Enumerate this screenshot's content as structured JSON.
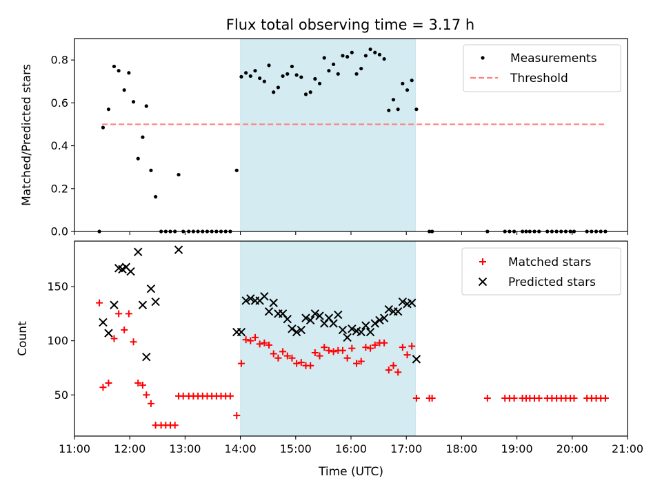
{
  "figure": {
    "title": "Flux total observing time = 3.17 h"
  },
  "chart_data": [
    {
      "type": "scatter",
      "panel": "top",
      "ylabel": "Matched/Predicted stars",
      "xlim": [
        "11:00",
        "21:00"
      ],
      "ylim": [
        0,
        0.9
      ],
      "y_ticks": [
        "0.0",
        "0.2",
        "0.4",
        "0.6",
        "0.8"
      ],
      "y_tick_values": [
        0,
        0.2,
        0.4,
        0.6,
        0.8
      ],
      "grid": false,
      "legend": {
        "placement": "top-right",
        "entries": [
          "Measurements",
          "Threshold"
        ]
      },
      "shaded_span": {
        "x_start": "14:00",
        "x_end": "17:10",
        "color": "#d3ebf1"
      },
      "threshold": {
        "name": "Threshold",
        "y": 0.5,
        "x_start": "11:30",
        "x_end": "20:35",
        "color": "#ff7f7f",
        "style": "dashed"
      },
      "series": [
        {
          "name": "Measurements",
          "color": "#000000",
          "points": [
            [
              "11:27",
              0.0
            ],
            [
              "11:31",
              0.485
            ],
            [
              "11:37",
              0.57
            ],
            [
              "11:43",
              0.77
            ],
            [
              "11:48",
              0.75
            ],
            [
              "11:54",
              0.66
            ],
            [
              "11:59",
              0.74
            ],
            [
              "12:04",
              0.605
            ],
            [
              "12:09",
              0.34
            ],
            [
              "12:14",
              0.44
            ],
            [
              "12:18",
              0.585
            ],
            [
              "12:23",
              0.285
            ],
            [
              "12:28",
              0.162
            ],
            [
              "12:34",
              0.0
            ],
            [
              "12:39",
              0.0
            ],
            [
              "12:44",
              0.0
            ],
            [
              "12:49",
              0.0
            ],
            [
              "12:53",
              0.265
            ],
            [
              "12:58",
              0.0
            ],
            [
              "13:04",
              0.0
            ],
            [
              "13:09",
              0.0
            ],
            [
              "13:14",
              0.0
            ],
            [
              "13:19",
              0.0
            ],
            [
              "13:24",
              0.0
            ],
            [
              "13:29",
              0.0
            ],
            [
              "13:34",
              0.0
            ],
            [
              "13:39",
              0.0
            ],
            [
              "13:44",
              0.0
            ],
            [
              "13:49",
              0.0
            ],
            [
              "13:56",
              0.285
            ],
            [
              "14:01",
              0.722
            ],
            [
              "14:06",
              0.74
            ],
            [
              "14:11",
              0.725
            ],
            [
              "14:16",
              0.75
            ],
            [
              "14:21",
              0.715
            ],
            [
              "14:26",
              0.7
            ],
            [
              "14:31",
              0.775
            ],
            [
              "14:36",
              0.65
            ],
            [
              "14:41",
              0.672
            ],
            [
              "14:46",
              0.725
            ],
            [
              "14:51",
              0.735
            ],
            [
              "14:56",
              0.77
            ],
            [
              "15:01",
              0.73
            ],
            [
              "15:06",
              0.72
            ],
            [
              "15:11",
              0.64
            ],
            [
              "15:16",
              0.65
            ],
            [
              "15:21",
              0.712
            ],
            [
              "15:26",
              0.69
            ],
            [
              "15:31",
              0.81
            ],
            [
              "15:36",
              0.75
            ],
            [
              "15:41",
              0.78
            ],
            [
              "15:46",
              0.735
            ],
            [
              "15:51",
              0.82
            ],
            [
              "15:56",
              0.815
            ],
            [
              "16:01",
              0.835
            ],
            [
              "16:06",
              0.735
            ],
            [
              "16:11",
              0.76
            ],
            [
              "16:16",
              0.82
            ],
            [
              "16:21",
              0.85
            ],
            [
              "16:26",
              0.835
            ],
            [
              "16:31",
              0.825
            ],
            [
              "16:36",
              0.805
            ],
            [
              "16:41",
              0.565
            ],
            [
              "16:46",
              0.615
            ],
            [
              "16:51",
              0.57
            ],
            [
              "16:56",
              0.69
            ],
            [
              "17:01",
              0.66
            ],
            [
              "17:06",
              0.705
            ],
            [
              "17:11",
              0.57
            ],
            [
              "17:25",
              0.0
            ],
            [
              "17:28",
              0.0
            ],
            [
              "18:28",
              0.0
            ],
            [
              "18:47",
              0.0
            ],
            [
              "18:52",
              0.0
            ],
            [
              "18:57",
              0.0
            ],
            [
              "19:06",
              0.0
            ],
            [
              "19:10",
              0.0
            ],
            [
              "19:14",
              0.0
            ],
            [
              "19:19",
              0.0
            ],
            [
              "19:24",
              0.0
            ],
            [
              "19:33",
              0.0
            ],
            [
              "19:38",
              0.0
            ],
            [
              "19:43",
              0.0
            ],
            [
              "19:48",
              0.0
            ],
            [
              "19:53",
              0.0
            ],
            [
              "19:58",
              0.0
            ],
            [
              "20:02",
              0.0
            ],
            [
              "20:16",
              0.0
            ],
            [
              "20:21",
              0.0
            ],
            [
              "20:26",
              0.0
            ],
            [
              "20:31",
              0.0
            ],
            [
              "20:36",
              0.0
            ]
          ]
        }
      ]
    },
    {
      "type": "scatter",
      "panel": "bottom",
      "xlabel": "Time (UTC)",
      "ylabel": "Count",
      "xlim": [
        "11:00",
        "21:00"
      ],
      "x_ticks": [
        "11:00",
        "12:00",
        "13:00",
        "14:00",
        "15:00",
        "16:00",
        "17:00",
        "18:00",
        "19:00",
        "20:00",
        "21:00"
      ],
      "ylim": [
        12,
        192
      ],
      "y_ticks": [
        "50",
        "100",
        "150"
      ],
      "y_tick_values": [
        50,
        100,
        150
      ],
      "grid": false,
      "legend": {
        "placement": "top-right",
        "entries": [
          "Matched stars",
          "Predicted stars"
        ]
      },
      "shaded_span": {
        "x_start": "14:00",
        "x_end": "17:10",
        "color": "#d3ebf1"
      },
      "series": [
        {
          "name": "Matched stars",
          "color": "#ff0000",
          "marker": "plus",
          "points": [
            [
              "11:27",
              135
            ],
            [
              "11:31",
              57
            ],
            [
              "11:37",
              61
            ],
            [
              "11:43",
              102
            ],
            [
              "11:48",
              125
            ],
            [
              "11:54",
              110
            ],
            [
              "11:59",
              125
            ],
            [
              "12:04",
              99
            ],
            [
              "12:09",
              61
            ],
            [
              "12:14",
              59
            ],
            [
              "12:18",
              50
            ],
            [
              "12:23",
              42
            ],
            [
              "12:28",
              22
            ],
            [
              "12:34",
              22
            ],
            [
              "12:39",
              22
            ],
            [
              "12:44",
              22
            ],
            [
              "12:49",
              22
            ],
            [
              "12:53",
              49
            ],
            [
              "12:58",
              49
            ],
            [
              "13:04",
              49
            ],
            [
              "13:09",
              49
            ],
            [
              "13:14",
              49
            ],
            [
              "13:19",
              49
            ],
            [
              "13:24",
              49
            ],
            [
              "13:29",
              49
            ],
            [
              "13:34",
              49
            ],
            [
              "13:39",
              49
            ],
            [
              "13:44",
              49
            ],
            [
              "13:49",
              49
            ],
            [
              "13:56",
              31
            ],
            [
              "14:01",
              79
            ],
            [
              "14:06",
              101
            ],
            [
              "14:11",
              100
            ],
            [
              "14:16",
              103
            ],
            [
              "14:21",
              97
            ],
            [
              "14:26",
              98
            ],
            [
              "14:31",
              96
            ],
            [
              "14:36",
              88
            ],
            [
              "14:41",
              84
            ],
            [
              "14:46",
              90
            ],
            [
              "14:51",
              86
            ],
            [
              "14:56",
              84
            ],
            [
              "15:01",
              79
            ],
            [
              "15:06",
              80
            ],
            [
              "15:11",
              77
            ],
            [
              "15:16",
              77
            ],
            [
              "15:21",
              89
            ],
            [
              "15:26",
              86
            ],
            [
              "15:31",
              94
            ],
            [
              "15:36",
              91
            ],
            [
              "15:41",
              90
            ],
            [
              "15:46",
              91
            ],
            [
              "15:51",
              91
            ],
            [
              "15:56",
              84
            ],
            [
              "16:01",
              93
            ],
            [
              "16:06",
              79
            ],
            [
              "16:11",
              81
            ],
            [
              "16:16",
              94
            ],
            [
              "16:21",
              93
            ],
            [
              "16:26",
              96
            ],
            [
              "16:31",
              98
            ],
            [
              "16:36",
              98
            ],
            [
              "16:41",
              73
            ],
            [
              "16:46",
              77
            ],
            [
              "16:51",
              71
            ],
            [
              "16:56",
              94
            ],
            [
              "17:01",
              87
            ],
            [
              "17:06",
              95
            ],
            [
              "17:11",
              47
            ],
            [
              "17:25",
              47
            ],
            [
              "17:28",
              47
            ],
            [
              "18:28",
              47
            ],
            [
              "18:47",
              47
            ],
            [
              "18:52",
              47
            ],
            [
              "18:57",
              47
            ],
            [
              "19:06",
              47
            ],
            [
              "19:10",
              47
            ],
            [
              "19:14",
              47
            ],
            [
              "19:19",
              47
            ],
            [
              "19:24",
              47
            ],
            [
              "19:33",
              47
            ],
            [
              "19:38",
              47
            ],
            [
              "19:43",
              47
            ],
            [
              "19:48",
              47
            ],
            [
              "19:53",
              47
            ],
            [
              "19:58",
              47
            ],
            [
              "20:02",
              47
            ],
            [
              "20:16",
              47
            ],
            [
              "20:21",
              47
            ],
            [
              "20:26",
              47
            ],
            [
              "20:31",
              47
            ],
            [
              "20:36",
              47
            ]
          ]
        },
        {
          "name": "Predicted stars",
          "color": "#000000",
          "marker": "x",
          "points": [
            [
              "11:31",
              117
            ],
            [
              "11:37",
              107
            ],
            [
              "11:43",
              133
            ],
            [
              "11:48",
              167
            ],
            [
              "11:52",
              166
            ],
            [
              "11:56",
              168
            ],
            [
              "12:01",
              164
            ],
            [
              "12:09",
              182
            ],
            [
              "12:14",
              133
            ],
            [
              "12:18",
              85
            ],
            [
              "12:23",
              148
            ],
            [
              "12:28",
              136
            ],
            [
              "12:53",
              184
            ],
            [
              "13:56",
              108
            ],
            [
              "14:01",
              108
            ],
            [
              "14:06",
              137
            ],
            [
              "14:11",
              139
            ],
            [
              "14:16",
              137
            ],
            [
              "14:21",
              137
            ],
            [
              "14:26",
              141
            ],
            [
              "14:31",
              127
            ],
            [
              "14:36",
              135
            ],
            [
              "14:41",
              125
            ],
            [
              "14:46",
              125
            ],
            [
              "14:51",
              120
            ],
            [
              "14:56",
              111
            ],
            [
              "15:01",
              108
            ],
            [
              "15:06",
              110
            ],
            [
              "15:11",
              121
            ],
            [
              "15:16",
              119
            ],
            [
              "15:21",
              125
            ],
            [
              "15:26",
              123
            ],
            [
              "15:31",
              116
            ],
            [
              "15:36",
              121
            ],
            [
              "15:41",
              116
            ],
            [
              "15:46",
              124
            ],
            [
              "15:51",
              110
            ],
            [
              "15:56",
              103
            ],
            [
              "16:01",
              111
            ],
            [
              "16:06",
              109
            ],
            [
              "16:11",
              108
            ],
            [
              "16:16",
              114
            ],
            [
              "16:21",
              108
            ],
            [
              "16:26",
              116
            ],
            [
              "16:31",
              119
            ],
            [
              "16:36",
              121
            ],
            [
              "16:41",
              129
            ],
            [
              "16:46",
              127
            ],
            [
              "16:51",
              127
            ],
            [
              "16:56",
              136
            ],
            [
              "17:01",
              134
            ],
            [
              "17:06",
              135
            ],
            [
              "17:11",
              83
            ]
          ]
        }
      ]
    }
  ]
}
